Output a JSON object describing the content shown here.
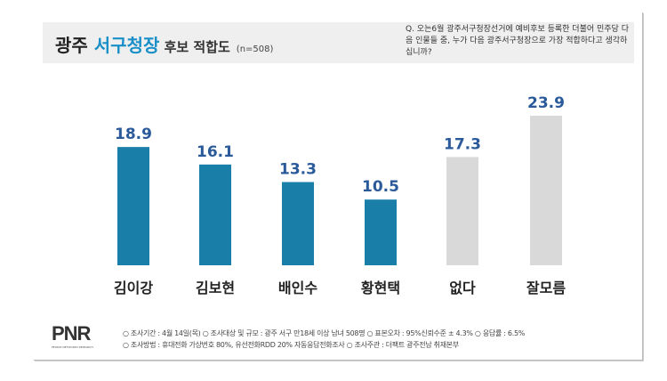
{
  "header": {
    "title_a": "광주 ",
    "title_b": "서구청장",
    "title_c": " 후보 적합도",
    "n": "(n=508)",
    "question": "Q. 오는6월 광주서구청장선거에 예비후보 등록한 더불어 민주당 다음 인물들 중, 누가 다음 광주서구청장으로 가장 적합하다고 생각하십니까?"
  },
  "chart_data": {
    "type": "bar",
    "categories": [
      "김이강",
      "김보현",
      "배인수",
      "황현택",
      "없다",
      "잘모름"
    ],
    "values": [
      18.9,
      16.1,
      13.3,
      10.5,
      17.3,
      23.9
    ],
    "colors": [
      "#1a7fa8",
      "#1a7fa8",
      "#1a7fa8",
      "#1a7fa8",
      "#d9d9d9",
      "#d9d9d9"
    ],
    "label_color": "#2a5a9a",
    "grid": false
  },
  "footer": {
    "logo": "PNR",
    "logo_sub": "PEOPLE NETWORKS RESEARCH",
    "line1": "○ 조사기간 : 4월 14일(목)  ○ 조사대상 및 규모 : 광주 서구 만18세 이상 남녀 508명  ○ 표본오차 : 95%신뢰수준 ± 4.3% ○ 응답률 : 6.5%",
    "line2": "○ 조사방법 : 휴대전화 가상번호 80%, 유선전화RDD 20% 자동응답전화조사   ○ 조사주관 : 더팩트 광주전남 취재본부"
  }
}
